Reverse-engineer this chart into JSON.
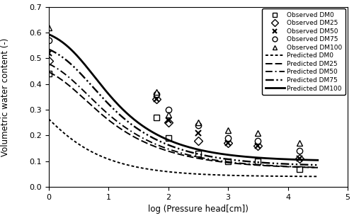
{
  "xlabel": "log (Pressure head[cm])",
  "ylabel": "Volumetric water content (-)",
  "xlim": [
    0.0,
    5.0
  ],
  "ylim": [
    0.0,
    0.7
  ],
  "xticks": [
    0.0,
    1.0,
    2.0,
    3.0,
    4.0,
    5.0
  ],
  "yticks": [
    0.0,
    0.1,
    0.2,
    0.3,
    0.4,
    0.5,
    0.6,
    0.7
  ],
  "obs_DM0": {
    "x": [
      0.0,
      1.8,
      2.0,
      2.5,
      3.0,
      3.5,
      4.2
    ],
    "y": [
      0.44,
      0.27,
      0.19,
      0.13,
      0.1,
      0.1,
      0.07
    ]
  },
  "obs_DM25": {
    "x": [
      0.0,
      1.8,
      2.0,
      2.5,
      3.0,
      3.5,
      4.2
    ],
    "y": [
      0.49,
      0.34,
      0.25,
      0.18,
      0.17,
      0.16,
      0.11
    ]
  },
  "obs_DM50": {
    "x": [
      0.0,
      1.8,
      2.0,
      2.5,
      3.0,
      3.5,
      4.2
    ],
    "y": [
      0.52,
      0.34,
      0.26,
      0.21,
      0.17,
      0.16,
      0.11
    ]
  },
  "obs_DM75": {
    "x": [
      0.0,
      1.8,
      2.0,
      2.5,
      3.0,
      3.5,
      4.2
    ],
    "y": [
      0.57,
      0.36,
      0.3,
      0.24,
      0.19,
      0.18,
      0.14
    ]
  },
  "obs_DM100": {
    "x": [
      0.0,
      1.8,
      2.0,
      2.5,
      3.0,
      3.5,
      4.2
    ],
    "y": [
      0.62,
      0.37,
      0.28,
      0.25,
      0.22,
      0.21,
      0.17
    ]
  },
  "pred_DM0": {
    "theta_s": 0.44,
    "theta_r": 0.04,
    "alpha": 2.5,
    "n": 1.55
  },
  "pred_DM25": {
    "theta_s": 0.49,
    "theta_r": 0.07,
    "alpha": 0.55,
    "n": 1.45
  },
  "pred_DM50": {
    "theta_s": 0.52,
    "theta_r": 0.07,
    "alpha": 0.5,
    "n": 1.45
  },
  "pred_DM75": {
    "theta_s": 0.57,
    "theta_r": 0.08,
    "alpha": 0.4,
    "n": 1.48
  },
  "pred_DM100": {
    "theta_s": 0.625,
    "theta_r": 0.1,
    "alpha": 0.35,
    "n": 1.52
  },
  "color": "black",
  "linewidth": 1.4,
  "markersize": 5,
  "figsize": [
    5.0,
    3.08
  ],
  "dpi": 100
}
